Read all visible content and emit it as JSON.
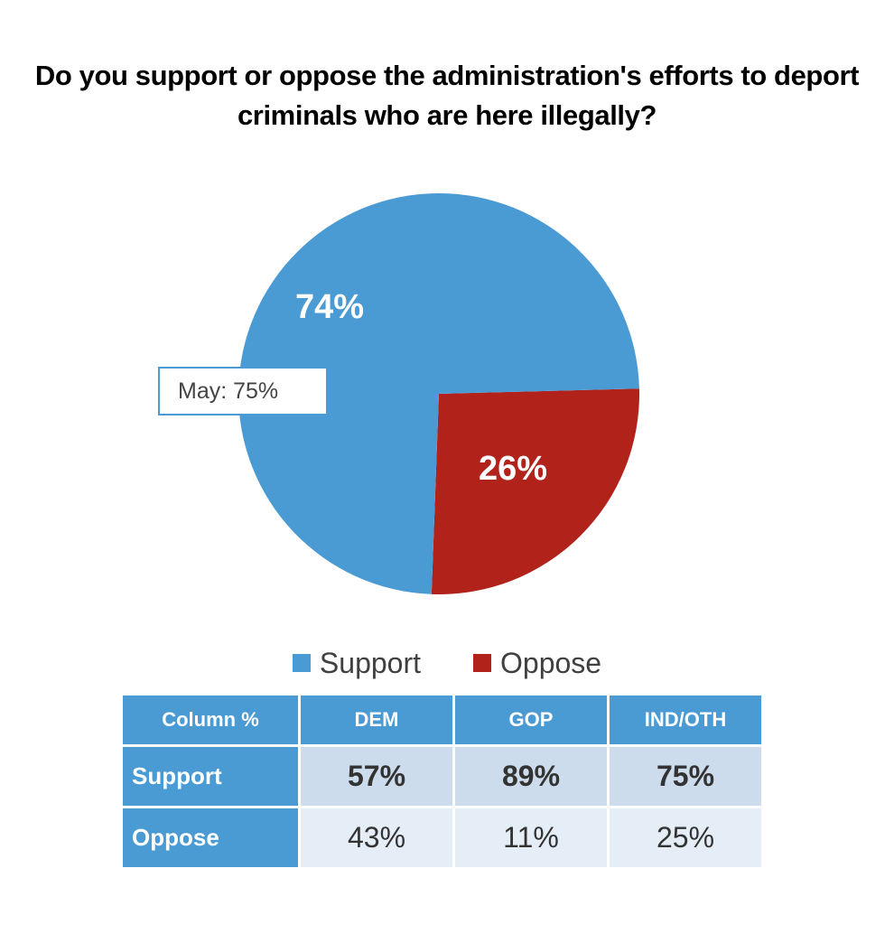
{
  "chart_data": [
    {
      "type": "pie",
      "title": "Do you support or oppose the administration's efforts to deport criminals who are here illegally?",
      "categories": [
        "Support",
        "Oppose"
      ],
      "values": [
        74,
        26
      ],
      "labels": [
        "74%",
        "26%"
      ],
      "colors": [
        "#4a9bd4",
        "#b0221a"
      ],
      "legend": {
        "position": "bottom",
        "entries": [
          "Support",
          "Oppose"
        ]
      },
      "annotations": [
        "May: 75%"
      ]
    },
    {
      "type": "table",
      "columns": [
        "Column %",
        "DEM",
        "GOP",
        "IND/OTH"
      ],
      "rows": [
        {
          "label": "Support",
          "values": [
            "57%",
            "89%",
            "75%"
          ]
        },
        {
          "label": "Oppose",
          "values": [
            "43%",
            "11%",
            "25%"
          ]
        }
      ]
    }
  ]
}
